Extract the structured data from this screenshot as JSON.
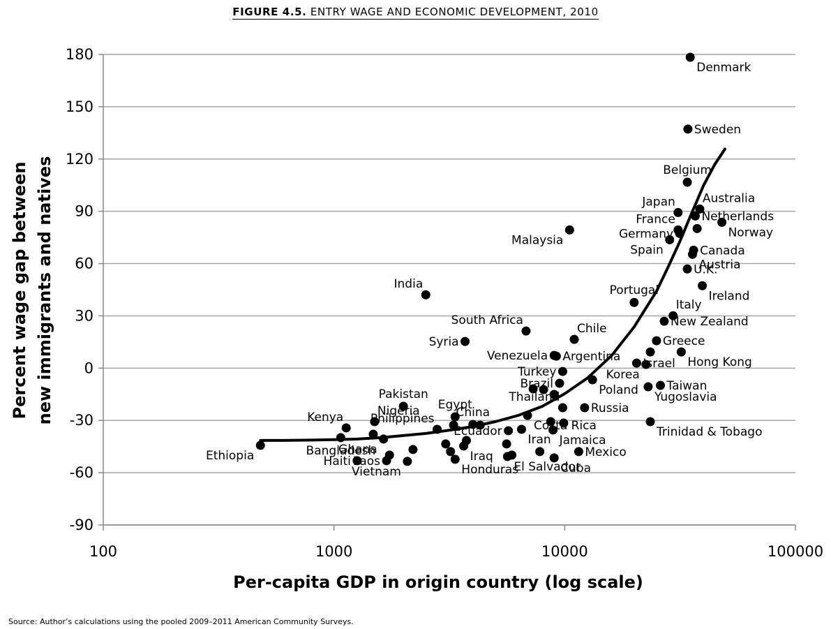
{
  "figure": {
    "number": "FIGURE 4.5.",
    "title": "ENTRY WAGE AND ECONOMIC DEVELOPMENT, 2010",
    "source": "Source: Author’s calculations using the pooled 2009–2011 American Community Surveys."
  },
  "chart_data": {
    "type": "scatter",
    "title": "ENTRY WAGE AND ECONOMIC DEVELOPMENT, 2010",
    "xlabel": "Per-capita GDP in origin country (log scale)",
    "ylabel_lines": [
      "Percent wage gap between",
      "new immigrants and natives"
    ],
    "xscale": "log",
    "xlim": [
      100,
      100000
    ],
    "ylim": [
      -90,
      180
    ],
    "grid": "horizontal",
    "xticks": [
      {
        "value": 100,
        "label": "100"
      },
      {
        "value": 1000,
        "label": "1000"
      },
      {
        "value": 10000,
        "label": "10000"
      },
      {
        "value": 100000,
        "label": "100000"
      }
    ],
    "yticks": [
      {
        "value": 180,
        "label": "180"
      },
      {
        "value": 150,
        "label": "150"
      },
      {
        "value": 120,
        "label": "120"
      },
      {
        "value": 90,
        "label": "90"
      },
      {
        "value": 60,
        "label": "60"
      },
      {
        "value": 30,
        "label": "30"
      },
      {
        "value": 0,
        "label": "0"
      },
      {
        "value": -30,
        "label": "-30"
      },
      {
        "value": -60,
        "label": "-60"
      },
      {
        "value": -90,
        "label": "-90"
      }
    ],
    "points": [
      {
        "name": "Denmark",
        "x": 35000,
        "y": 178.4,
        "label": "Denmark",
        "pos": "br"
      },
      {
        "name": "Sweden",
        "x": 34200,
        "y": 137.2,
        "label": "Sweden",
        "pos": "r"
      },
      {
        "name": "Belgium",
        "x": 34000,
        "y": 106.7,
        "label": "Belgium",
        "pos": "t"
      },
      {
        "name": "Japan",
        "x": 31000,
        "y": 89.3,
        "label": "Japan",
        "pos": "tl"
      },
      {
        "name": "Australia",
        "x": 38500,
        "y": 91.3,
        "label": "Australia",
        "pos": "tr"
      },
      {
        "name": "Netherlands",
        "x": 36800,
        "y": 87.3,
        "label": "Netherlands",
        "pos": "r"
      },
      {
        "name": "France",
        "x": 31000,
        "y": 79.3,
        "label": "France",
        "pos": "tl"
      },
      {
        "name": "Germany",
        "x": 31500,
        "y": 77.3,
        "label": "Germany",
        "pos": "l"
      },
      {
        "name": "France-2",
        "x": 37500,
        "y": 80.1,
        "label": "",
        "pos": "r"
      },
      {
        "name": "Norway",
        "x": 48000,
        "y": 83.7,
        "label": "Norway",
        "pos": "br"
      },
      {
        "name": "Spain",
        "x": 28500,
        "y": 73.7,
        "label": "Spain",
        "pos": "bl"
      },
      {
        "name": "Malaysia",
        "x": 10500,
        "y": 79.3,
        "label": "Malaysia",
        "pos": "bl"
      },
      {
        "name": "Canada",
        "x": 36200,
        "y": 67.7,
        "label": "Canada",
        "pos": "r"
      },
      {
        "name": "Austria",
        "x": 35800,
        "y": 65.3,
        "label": "Austria",
        "pos": "br"
      },
      {
        "name": "U.K.",
        "x": 34000,
        "y": 56.9,
        "label": "U.K.",
        "pos": "r"
      },
      {
        "name": "Ireland",
        "x": 39500,
        "y": 47.3,
        "label": "Ireland",
        "pos": "br"
      },
      {
        "name": "India",
        "x": 2500,
        "y": 42.1,
        "label": "India",
        "pos": "tl"
      },
      {
        "name": "Portugal",
        "x": 20000,
        "y": 37.7,
        "label": "Portugal",
        "pos": "t"
      },
      {
        "name": "Italy",
        "x": 29500,
        "y": 30.1,
        "label": "Italy",
        "pos": "tr"
      },
      {
        "name": "New Zealand",
        "x": 27000,
        "y": 26.9,
        "label": "New Zealand",
        "pos": "r"
      },
      {
        "name": "South Africa",
        "x": 6800,
        "y": 21.3,
        "label": "South Africa",
        "pos": "tl"
      },
      {
        "name": "Chile",
        "x": 11000,
        "y": 16.5,
        "label": "Chile",
        "pos": "tr"
      },
      {
        "name": "Greece",
        "x": 25000,
        "y": 15.7,
        "label": "Greece",
        "pos": "r"
      },
      {
        "name": "Syria",
        "x": 3700,
        "y": 15.3,
        "label": "Syria",
        "pos": "l"
      },
      {
        "name": "Venezuela",
        "x": 9000,
        "y": 7.3,
        "label": "Venezuela",
        "pos": "l"
      },
      {
        "name": "Argentina",
        "x": 9200,
        "y": 6.9,
        "label": "Argentina",
        "pos": "r"
      },
      {
        "name": "Hong Kong",
        "x": 32000,
        "y": 9.3,
        "label": "Hong Kong",
        "pos": "br"
      },
      {
        "name": "Korea-2",
        "x": 23500,
        "y": 9.3,
        "label": "",
        "pos": "r"
      },
      {
        "name": "Israel",
        "x": 20500,
        "y": 2.9,
        "label": "Israel",
        "pos": "r"
      },
      {
        "name": "Korea",
        "x": 22500,
        "y": 2.1,
        "label": "Korea",
        "pos": "bl"
      },
      {
        "name": "Turkey",
        "x": 9800,
        "y": -1.9,
        "label": "Turkey",
        "pos": "l"
      },
      {
        "name": "Poland",
        "x": 13200,
        "y": -6.7,
        "label": "Poland",
        "pos": "br"
      },
      {
        "name": "Brazil",
        "x": 9500,
        "y": -8.7,
        "label": "Brazil",
        "pos": "l"
      },
      {
        "name": "Taiwan",
        "x": 26000,
        "y": -9.9,
        "label": "Taiwan",
        "pos": "r"
      },
      {
        "name": "Yugoslavia",
        "x": 23000,
        "y": -10.7,
        "label": "Yugoslavia",
        "pos": "br"
      },
      {
        "name": "Thailand-2",
        "x": 7300,
        "y": -11.9,
        "label": "",
        "pos": "r"
      },
      {
        "name": "Thailand-3",
        "x": 8100,
        "y": -12.3,
        "label": "",
        "pos": "r"
      },
      {
        "name": "Thailand-4",
        "x": 9000,
        "y": -15.1,
        "label": "",
        "pos": "r"
      },
      {
        "name": "Pakistan",
        "x": 2000,
        "y": -21.9,
        "label": "Pakistan",
        "pos": "t"
      },
      {
        "name": "Russia",
        "x": 12200,
        "y": -22.7,
        "label": "Russia",
        "pos": "r"
      },
      {
        "name": "Thailand",
        "x": 9800,
        "y": -22.7,
        "label": "Thailand",
        "pos": "tl"
      },
      {
        "name": "Costa Rica",
        "x": 6900,
        "y": -27.1,
        "label": "Costa Rica",
        "pos": "br"
      },
      {
        "name": "Egypt",
        "x": 3350,
        "y": -27.9,
        "label": "Egypt",
        "pos": "t"
      },
      {
        "name": "Nigeria",
        "x": 1500,
        "y": -30.7,
        "label": "Nigeria",
        "pos": "tr"
      },
      {
        "name": "Trinidad & Tobago",
        "x": 23500,
        "y": -30.7,
        "label": "Trinidad & Tobago",
        "pos": "br"
      },
      {
        "name": "Costa Rica-2",
        "x": 8700,
        "y": -30.7,
        "label": "",
        "pos": "r"
      },
      {
        "name": "China",
        "x": 4000,
        "y": -32.3,
        "label": "China",
        "pos": "t"
      },
      {
        "name": "Costa Rica-3",
        "x": 9900,
        "y": -31.5,
        "label": "",
        "pos": "r"
      },
      {
        "name": "Philippines-2",
        "x": 3300,
        "y": -32.7,
        "label": "",
        "pos": "r"
      },
      {
        "name": "Philippines-3",
        "x": 4300,
        "y": -32.7,
        "label": "",
        "pos": "r"
      },
      {
        "name": "Kenya",
        "x": 1130,
        "y": -34.3,
        "label": "Kenya",
        "pos": "tl"
      },
      {
        "name": "Philippines",
        "x": 2800,
        "y": -35.1,
        "label": "Philippines",
        "pos": "tl"
      },
      {
        "name": "Ecuador",
        "x": 5700,
        "y": -35.9,
        "label": "Ecuador",
        "pos": "l"
      },
      {
        "name": "Iran",
        "x": 6500,
        "y": -35.1,
        "label": "Iran",
        "pos": "br"
      },
      {
        "name": "Jamaica",
        "x": 8900,
        "y": -35.5,
        "label": "Jamaica",
        "pos": "br"
      },
      {
        "name": "Ghana-2",
        "x": 1480,
        "y": -37.9,
        "label": "",
        "pos": "r"
      },
      {
        "name": "Bangladesh",
        "x": 1070,
        "y": -39.9,
        "label": "Bangladesh",
        "pos": "b"
      },
      {
        "name": "Ghana",
        "x": 1640,
        "y": -40.7,
        "label": "Ghana",
        "pos": "bl"
      },
      {
        "name": "Iraq-2",
        "x": 3750,
        "y": -41.5,
        "label": "",
        "pos": "r"
      },
      {
        "name": "Iraq-3",
        "x": 3050,
        "y": -43.5,
        "label": "",
        "pos": "r"
      },
      {
        "name": "Iraq-4",
        "x": 5600,
        "y": -43.5,
        "label": "",
        "pos": "r"
      },
      {
        "name": "Ethiopia",
        "x": 480,
        "y": -44.3,
        "label": "Ethiopia",
        "pos": "bl"
      },
      {
        "name": "Iraq",
        "x": 3650,
        "y": -44.7,
        "label": "Iraq",
        "pos": "br"
      },
      {
        "name": "Haiti-2",
        "x": 2200,
        "y": -46.7,
        "label": "",
        "pos": "r"
      },
      {
        "name": "Honduras-2",
        "x": 3200,
        "y": -47.9,
        "label": "",
        "pos": "r"
      },
      {
        "name": "Mexico",
        "x": 11500,
        "y": -47.9,
        "label": "Mexico",
        "pos": "r"
      },
      {
        "name": "El Salvador-2",
        "x": 7800,
        "y": -47.9,
        "label": "",
        "pos": "r"
      },
      {
        "name": "Laos-2",
        "x": 1740,
        "y": -49.9,
        "label": "",
        "pos": "r"
      },
      {
        "name": "El Salvador-3",
        "x": 5900,
        "y": -49.9,
        "label": "",
        "pos": "r"
      },
      {
        "name": "El Salvador",
        "x": 5650,
        "y": -50.7,
        "label": "El Salvador",
        "pos": "br"
      },
      {
        "name": "Cuba",
        "x": 9000,
        "y": -51.5,
        "label": "Cuba",
        "pos": "br"
      },
      {
        "name": "Honduras",
        "x": 3350,
        "y": -52.3,
        "label": "Honduras",
        "pos": "br"
      },
      {
        "name": "Haiti",
        "x": 1260,
        "y": -53.1,
        "label": "Haiti",
        "pos": "l"
      },
      {
        "name": "Vietnam",
        "x": 2080,
        "y": -53.5,
        "label": "Vietnam",
        "pos": "bl"
      },
      {
        "name": "Laos",
        "x": 1690,
        "y": -53.1,
        "label": "Laos",
        "pos": "l"
      }
    ],
    "fit_curve": [
      {
        "x": 480,
        "y": -41.5
      },
      {
        "x": 600,
        "y": -41.5
      },
      {
        "x": 800,
        "y": -41.3
      },
      {
        "x": 1000,
        "y": -41.0
      },
      {
        "x": 1260,
        "y": -40.7
      },
      {
        "x": 1600,
        "y": -39.9
      },
      {
        "x": 2000,
        "y": -38.7
      },
      {
        "x": 2500,
        "y": -37.5
      },
      {
        "x": 3200,
        "y": -35.5
      },
      {
        "x": 4000,
        "y": -33.5
      },
      {
        "x": 5000,
        "y": -30.7
      },
      {
        "x": 6300,
        "y": -27.1
      },
      {
        "x": 8000,
        "y": -21.9
      },
      {
        "x": 10000,
        "y": -14.7
      },
      {
        "x": 12600,
        "y": -5.5
      },
      {
        "x": 16000,
        "y": 7.3
      },
      {
        "x": 20000,
        "y": 23.7
      },
      {
        "x": 25000,
        "y": 44.1
      },
      {
        "x": 28000,
        "y": 57.7
      },
      {
        "x": 31600,
        "y": 72.9
      },
      {
        "x": 35500,
        "y": 88.9
      },
      {
        "x": 40000,
        "y": 104.9
      },
      {
        "x": 44700,
        "y": 116.9
      },
      {
        "x": 49500,
        "y": 125.7
      }
    ]
  }
}
